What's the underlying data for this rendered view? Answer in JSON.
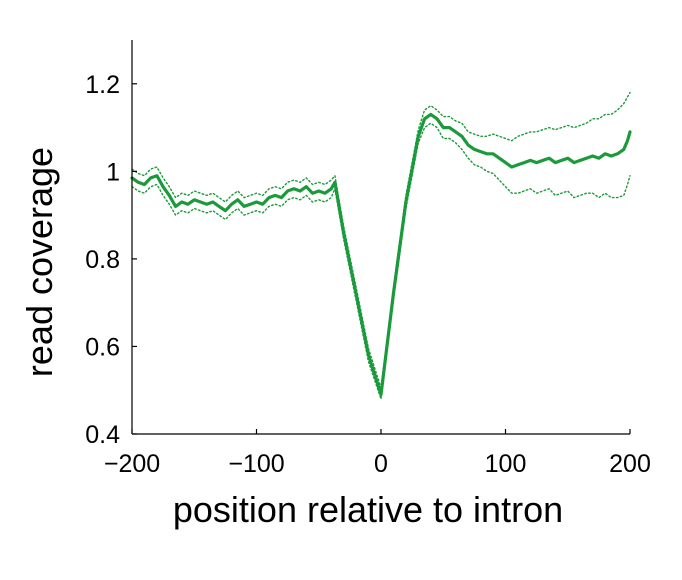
{
  "chart_data": {
    "type": "line",
    "title": "",
    "xlabel": "position relative to intron",
    "ylabel": "read coverage",
    "xlim": [
      -200,
      200
    ],
    "ylim": [
      0.4,
      1.3
    ],
    "x_ticks": [
      -200,
      -100,
      0,
      100,
      200
    ],
    "x_tick_labels": [
      "−200",
      "−100",
      "0",
      "100",
      "200"
    ],
    "y_ticks": [
      0.4,
      0.6,
      0.8,
      1.0,
      1.2
    ],
    "y_tick_labels": [
      "0.4",
      "0.6",
      "0.8",
      "1",
      "1.2"
    ],
    "grid": false,
    "legend": "none",
    "color": "#1a9a3a",
    "series": [
      {
        "style": "solid",
        "x": [
          -200,
          -195,
          -190,
          -185,
          -180,
          -175,
          -170,
          -165,
          -160,
          -155,
          -150,
          -145,
          -140,
          -135,
          -130,
          -125,
          -120,
          -115,
          -110,
          -105,
          -100,
          -95,
          -90,
          -85,
          -80,
          -75,
          -70,
          -65,
          -60,
          -55,
          -50,
          -45,
          -40,
          -37,
          -30,
          -20,
          -10,
          0,
          10,
          20,
          30,
          35,
          40,
          45,
          50,
          55,
          60,
          65,
          70,
          75,
          80,
          85,
          90,
          95,
          100,
          105,
          110,
          115,
          120,
          125,
          130,
          135,
          140,
          145,
          150,
          155,
          160,
          165,
          170,
          175,
          180,
          185,
          190,
          195,
          198,
          200
        ],
        "y": [
          0.985,
          0.975,
          0.97,
          0.985,
          0.99,
          0.965,
          0.945,
          0.92,
          0.93,
          0.925,
          0.935,
          0.93,
          0.925,
          0.93,
          0.92,
          0.91,
          0.925,
          0.935,
          0.92,
          0.925,
          0.93,
          0.925,
          0.94,
          0.945,
          0.94,
          0.955,
          0.96,
          0.955,
          0.965,
          0.95,
          0.955,
          0.95,
          0.96,
          0.975,
          0.86,
          0.72,
          0.58,
          0.49,
          0.72,
          0.93,
          1.08,
          1.12,
          1.13,
          1.12,
          1.1,
          1.1,
          1.09,
          1.08,
          1.06,
          1.05,
          1.045,
          1.04,
          1.04,
          1.03,
          1.02,
          1.01,
          1.015,
          1.02,
          1.025,
          1.02,
          1.025,
          1.03,
          1.02,
          1.025,
          1.03,
          1.02,
          1.025,
          1.03,
          1.035,
          1.03,
          1.04,
          1.035,
          1.04,
          1.05,
          1.07,
          1.09
        ]
      },
      {
        "style": "dotted",
        "x": [
          -200,
          -195,
          -190,
          -185,
          -180,
          -175,
          -170,
          -165,
          -160,
          -155,
          -150,
          -145,
          -140,
          -135,
          -130,
          -125,
          -120,
          -115,
          -110,
          -105,
          -100,
          -95,
          -90,
          -85,
          -80,
          -75,
          -70,
          -65,
          -60,
          -55,
          -50,
          -45,
          -40,
          -37,
          -30,
          -20,
          -10,
          0,
          10,
          20,
          30,
          35,
          40,
          45,
          50,
          55,
          60,
          65,
          70,
          75,
          80,
          85,
          90,
          95,
          100,
          105,
          110,
          115,
          120,
          125,
          130,
          135,
          140,
          145,
          150,
          155,
          160,
          165,
          170,
          175,
          180,
          185,
          190,
          195,
          198,
          200
        ],
        "y": [
          1.005,
          0.995,
          0.99,
          1.005,
          1.01,
          0.985,
          0.965,
          0.94,
          0.95,
          0.945,
          0.955,
          0.95,
          0.945,
          0.95,
          0.94,
          0.93,
          0.945,
          0.955,
          0.94,
          0.945,
          0.95,
          0.945,
          0.96,
          0.965,
          0.96,
          0.975,
          0.98,
          0.975,
          0.985,
          0.97,
          0.975,
          0.97,
          0.98,
          0.99,
          0.875,
          0.735,
          0.595,
          0.505,
          0.735,
          0.945,
          1.095,
          1.14,
          1.15,
          1.14,
          1.125,
          1.125,
          1.115,
          1.11,
          1.09,
          1.085,
          1.08,
          1.08,
          1.085,
          1.08,
          1.075,
          1.07,
          1.08,
          1.085,
          1.09,
          1.09,
          1.095,
          1.1,
          1.095,
          1.1,
          1.105,
          1.1,
          1.105,
          1.11,
          1.12,
          1.12,
          1.13,
          1.13,
          1.14,
          1.155,
          1.17,
          1.18
        ]
      },
      {
        "style": "dotted",
        "x": [
          -200,
          -195,
          -190,
          -185,
          -180,
          -175,
          -170,
          -165,
          -160,
          -155,
          -150,
          -145,
          -140,
          -135,
          -130,
          -125,
          -120,
          -115,
          -110,
          -105,
          -100,
          -95,
          -90,
          -85,
          -80,
          -75,
          -70,
          -65,
          -60,
          -55,
          -50,
          -45,
          -40,
          -37,
          -30,
          -20,
          -10,
          0,
          10,
          20,
          30,
          35,
          40,
          45,
          50,
          55,
          60,
          65,
          70,
          75,
          80,
          85,
          90,
          95,
          100,
          105,
          110,
          115,
          120,
          125,
          130,
          135,
          140,
          145,
          150,
          155,
          160,
          165,
          170,
          175,
          180,
          185,
          190,
          195,
          198,
          200
        ],
        "y": [
          0.965,
          0.955,
          0.95,
          0.965,
          0.97,
          0.945,
          0.925,
          0.9,
          0.91,
          0.905,
          0.915,
          0.91,
          0.905,
          0.91,
          0.9,
          0.89,
          0.905,
          0.915,
          0.9,
          0.905,
          0.91,
          0.905,
          0.92,
          0.925,
          0.92,
          0.935,
          0.94,
          0.935,
          0.945,
          0.93,
          0.935,
          0.93,
          0.94,
          0.96,
          0.845,
          0.705,
          0.565,
          0.48,
          0.705,
          0.915,
          1.065,
          1.1,
          1.11,
          1.1,
          1.075,
          1.075,
          1.065,
          1.05,
          1.03,
          1.015,
          1.01,
          1.0,
          0.995,
          0.98,
          0.965,
          0.95,
          0.95,
          0.955,
          0.96,
          0.95,
          0.955,
          0.96,
          0.945,
          0.95,
          0.955,
          0.94,
          0.945,
          0.95,
          0.95,
          0.94,
          0.95,
          0.94,
          0.94,
          0.945,
          0.97,
          0.99
        ]
      }
    ]
  }
}
